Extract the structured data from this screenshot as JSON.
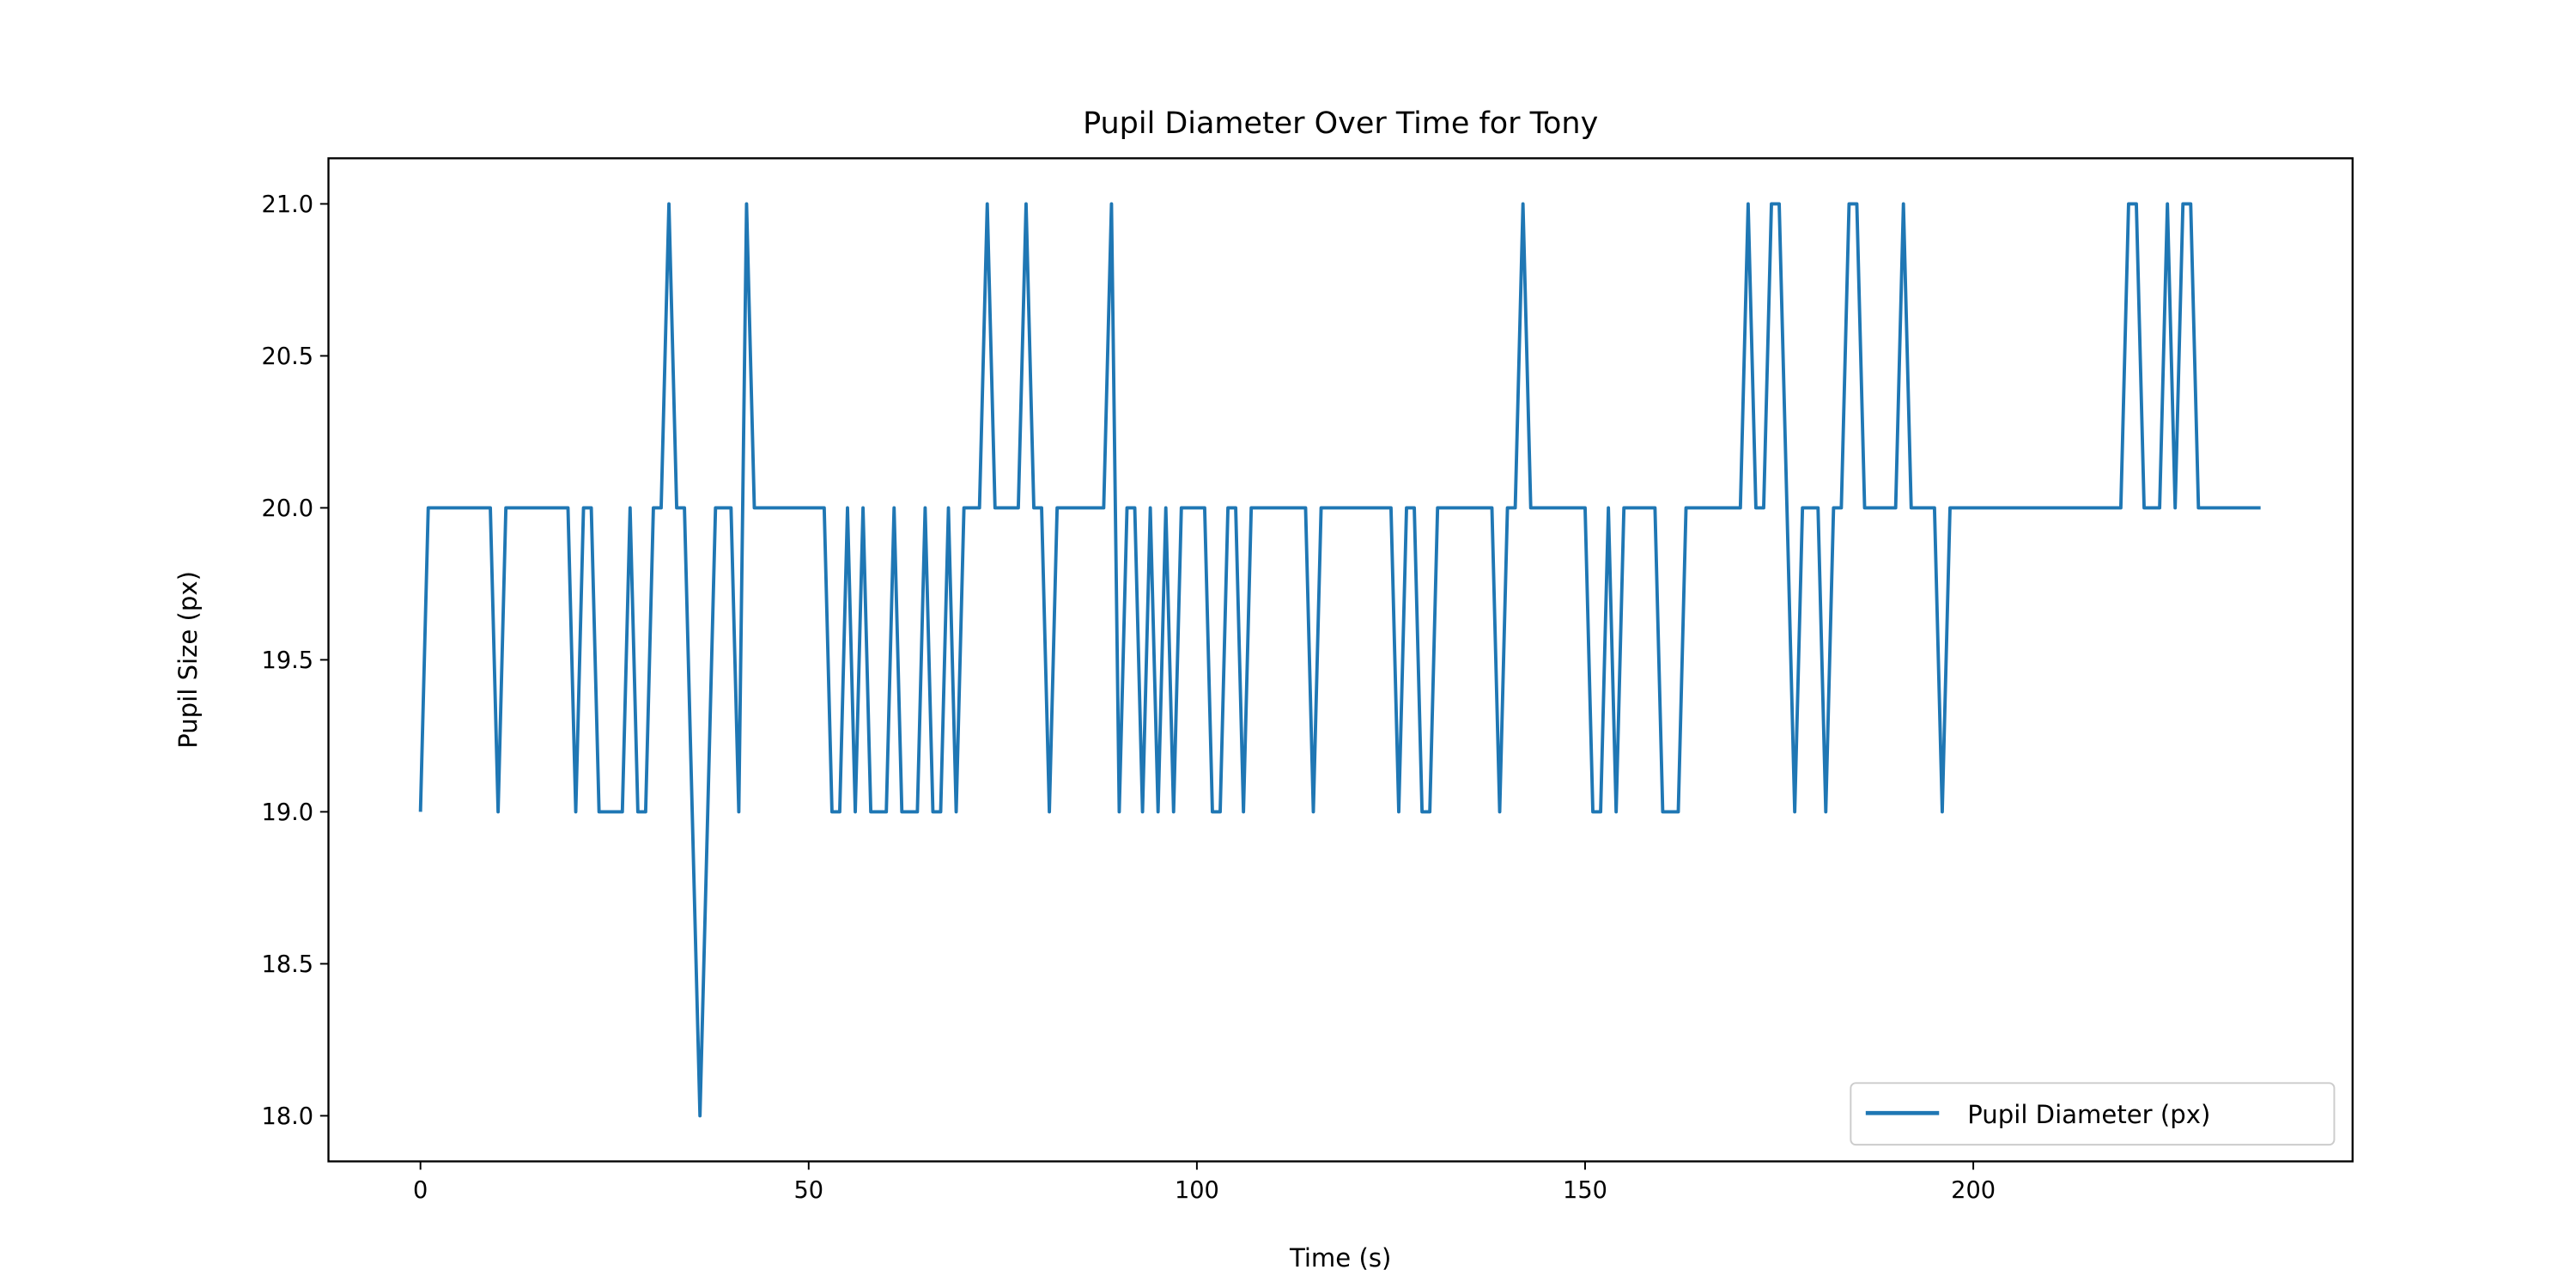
{
  "chart_data": {
    "type": "line",
    "title": "Pupil Diameter Over Time for Tony",
    "x_label": "Time (s)",
    "y_label": "Pupil Size (px)",
    "x": [
      0,
      1,
      2,
      3,
      4,
      5,
      6,
      7,
      8,
      9,
      10,
      11,
      12,
      13,
      14,
      15,
      16,
      17,
      18,
      19,
      20,
      21,
      22,
      23,
      24,
      25,
      26,
      27,
      28,
      29,
      30,
      31,
      32,
      33,
      34,
      35,
      36,
      37,
      38,
      39,
      40,
      41,
      42,
      43,
      44,
      45,
      46,
      47,
      48,
      49,
      50,
      51,
      52,
      53,
      54,
      55,
      56,
      57,
      58,
      59,
      60,
      61,
      62,
      63,
      64,
      65,
      66,
      67,
      68,
      69,
      70,
      71,
      72,
      73,
      74,
      75,
      76,
      77,
      78,
      79,
      80,
      81,
      82,
      83,
      84,
      85,
      86,
      87,
      88,
      89,
      90,
      91,
      92,
      93,
      94,
      95,
      96,
      97,
      98,
      99,
      100,
      101,
      102,
      103,
      104,
      105,
      106,
      107,
      108,
      109,
      110,
      111,
      112,
      113,
      114,
      115,
      116,
      117,
      118,
      119,
      120,
      121,
      122,
      123,
      124,
      125,
      126,
      127,
      128,
      129,
      130,
      131,
      132,
      133,
      134,
      135,
      136,
      137,
      138,
      139,
      140,
      141,
      142,
      143,
      144,
      145,
      146,
      147,
      148,
      149,
      150,
      151,
      152,
      153,
      154,
      155,
      156,
      157,
      158,
      159,
      160,
      161,
      162,
      163,
      164,
      165,
      166,
      167,
      168,
      169,
      170,
      171,
      172,
      173,
      174,
      175,
      176,
      177,
      178,
      179,
      180,
      181,
      182,
      183,
      184,
      185,
      186,
      187,
      188,
      189,
      190,
      191,
      192,
      193,
      194,
      195,
      196,
      197,
      198,
      199,
      200,
      201,
      202,
      203,
      204,
      205,
      206,
      207,
      208,
      209,
      210,
      211,
      212,
      213,
      214,
      215,
      216,
      217,
      218,
      219,
      220,
      221,
      222,
      223,
      224,
      225,
      226,
      227,
      228,
      229,
      230,
      231,
      232,
      233,
      234,
      235,
      236,
      237
    ],
    "series": [
      {
        "name": "Pupil Diameter (px)",
        "color": "#1f77b4",
        "values": [
          19,
          20,
          20,
          20,
          20,
          20,
          20,
          20,
          20,
          20,
          19,
          20,
          20,
          20,
          20,
          20,
          20,
          20,
          20,
          20,
          19,
          20,
          20,
          19,
          19,
          19,
          19,
          20,
          19,
          19,
          20,
          20,
          21,
          20,
          20,
          19,
          18,
          19,
          20,
          20,
          20,
          19,
          21,
          20,
          20,
          20,
          20,
          20,
          20,
          20,
          20,
          20,
          20,
          19,
          19,
          20,
          19,
          20,
          19,
          19,
          19,
          20,
          19,
          19,
          19,
          20,
          19,
          19,
          20,
          19,
          20,
          20,
          20,
          21,
          20,
          20,
          20,
          20,
          21,
          20,
          20,
          19,
          20,
          20,
          20,
          20,
          20,
          20,
          20,
          21,
          19,
          20,
          20,
          19,
          20,
          19,
          20,
          19,
          20,
          20,
          20,
          20,
          19,
          19,
          20,
          20,
          19,
          20,
          20,
          20,
          20,
          20,
          20,
          20,
          20,
          19,
          20,
          20,
          20,
          20,
          20,
          20,
          20,
          20,
          20,
          20,
          19,
          20,
          20,
          19,
          19,
          20,
          20,
          20,
          20,
          20,
          20,
          20,
          20,
          19,
          20,
          20,
          21,
          20,
          20,
          20,
          20,
          20,
          20,
          20,
          20,
          19,
          19,
          20,
          19,
          20,
          20,
          20,
          20,
          20,
          19,
          19,
          19,
          20,
          20,
          20,
          20,
          20,
          20,
          20,
          20,
          21,
          20,
          20,
          21,
          21,
          20,
          19,
          20,
          20,
          20,
          19,
          20,
          20,
          21,
          21,
          20,
          20,
          20,
          20,
          20,
          21,
          20,
          20,
          20,
          20,
          19,
          20,
          20,
          20,
          20,
          20,
          20,
          20,
          20,
          20,
          20,
          20,
          20,
          20,
          20,
          20,
          20,
          20,
          20,
          20,
          20,
          20,
          20,
          20,
          21,
          21,
          20,
          20,
          20,
          21,
          20,
          21,
          21,
          20,
          20,
          20,
          20,
          20,
          20,
          20,
          20,
          20
        ]
      }
    ],
    "xlim": [
      -11.85,
      248.85
    ],
    "xticks": [
      0,
      50,
      100,
      150,
      200
    ],
    "ylim": [
      17.85,
      21.15
    ],
    "yticks": [
      {
        "value": 18,
        "label": "18.0"
      },
      {
        "value": 18.5,
        "label": "18.5"
      },
      {
        "value": 19,
        "label": "19.0"
      },
      {
        "value": 19.5,
        "label": "19.5"
      },
      {
        "value": 20,
        "label": "20.0"
      },
      {
        "value": 20.5,
        "label": "20.5"
      },
      {
        "value": 21,
        "label": "21.0"
      }
    ],
    "legend": "lower right"
  }
}
